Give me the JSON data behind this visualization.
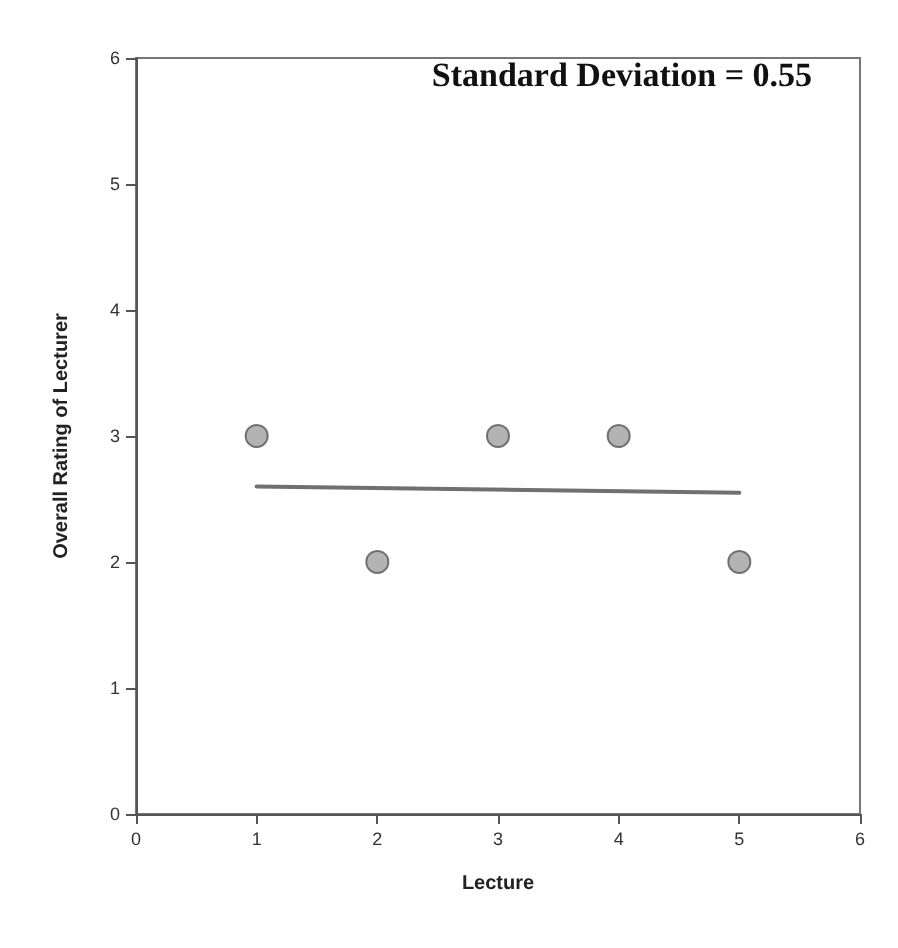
{
  "chart_data": {
    "type": "scatter",
    "title": "Standard Deviation = 0.55",
    "xlabel": "Lecture",
    "ylabel": "Overall Rating of Lecturer",
    "x": [
      1,
      2,
      3,
      4,
      5
    ],
    "xlim": [
      0,
      6
    ],
    "xticks": [
      0,
      1,
      2,
      3,
      4,
      5,
      6
    ],
    "ylim": [
      0,
      6
    ],
    "yticks": [
      0,
      1,
      2,
      3,
      4,
      5,
      6
    ],
    "grid": false,
    "series": [
      {
        "color": "#a0a0a0",
        "marker": "circle",
        "values": [
          3,
          2,
          3,
          3,
          2
        ]
      },
      {
        "type": "line",
        "color": "#707070",
        "x": [
          1,
          5
        ],
        "values": [
          2.6,
          2.55
        ],
        "marker": "none",
        "line_style": "solid"
      }
    ]
  }
}
